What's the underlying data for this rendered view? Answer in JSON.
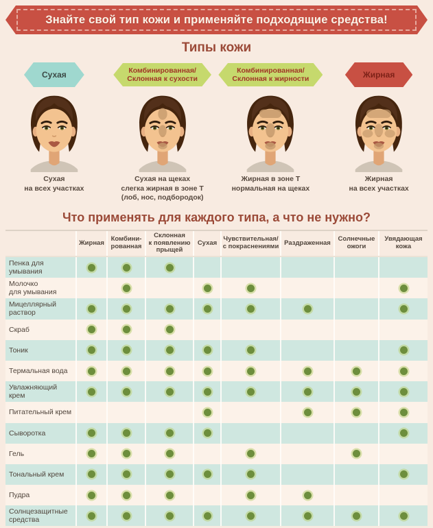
{
  "banner": {
    "text": "Знайте свой тип кожи и применяйте подходящие средства!"
  },
  "skin_types": {
    "title": "Типы кожи",
    "items": [
      {
        "badge": "Сухая",
        "color": "#9fd8cf",
        "text_color": "#3c4a46",
        "description": "Сухая\nна всех участках"
      },
      {
        "badge": "Комбинированная/\nСклонная к сухости",
        "color": "#c6d96d",
        "text_color": "#a03727",
        "description": "Сухая на щеках\nслегка жирная в зоне Т\n(лоб, нос, подбородок)"
      },
      {
        "badge": "Комбинированная/\nСклонная к жирности",
        "color": "#c6d96d",
        "text_color": "#a03727",
        "description": "Жирная в зоне Т\nнормальная на щеках"
      },
      {
        "badge": "Жирная",
        "color": "#c85043",
        "text_color": "#7e2218",
        "description": "Жирная\nна всех участках"
      }
    ]
  },
  "table": {
    "title": "Что применять для каждого типа, а что не нужно?",
    "columns": [
      "Жирная",
      "Комбини-\nрованная",
      "Склонная\nк появлению\nпрыщей",
      "Сухая",
      "Чувствительная/\nс покраснениями",
      "Раздраженная",
      "Солнечные\nожоги",
      "Увядающая\nкожа"
    ],
    "rows": [
      {
        "label": "Пенка для\nумывания",
        "marks": [
          1,
          1,
          1,
          0,
          0,
          0,
          0,
          0
        ]
      },
      {
        "label": "Молочко\nдля умывания",
        "marks": [
          0,
          1,
          0,
          1,
          1,
          0,
          0,
          1
        ]
      },
      {
        "label": "Мицеллярный\nраствор",
        "marks": [
          1,
          1,
          1,
          1,
          1,
          1,
          0,
          1
        ]
      },
      {
        "label": "Скраб",
        "marks": [
          1,
          1,
          1,
          0,
          0,
          0,
          0,
          0
        ]
      },
      {
        "label": "Тоник",
        "marks": [
          1,
          1,
          1,
          1,
          1,
          0,
          0,
          1
        ]
      },
      {
        "label": "Термальная вода",
        "marks": [
          1,
          1,
          1,
          1,
          1,
          1,
          1,
          1
        ]
      },
      {
        "label": "Увлажняющий\nкрем",
        "marks": [
          1,
          1,
          1,
          1,
          1,
          1,
          1,
          1
        ]
      },
      {
        "label": "Питательный крем",
        "marks": [
          0,
          0,
          0,
          1,
          0,
          1,
          1,
          1
        ]
      },
      {
        "label": "Сыворотка",
        "marks": [
          1,
          1,
          1,
          1,
          0,
          0,
          0,
          1
        ]
      },
      {
        "label": "Гель",
        "marks": [
          1,
          1,
          1,
          0,
          1,
          0,
          1,
          0
        ]
      },
      {
        "label": "Тональный крем",
        "marks": [
          1,
          1,
          1,
          1,
          1,
          0,
          0,
          1
        ]
      },
      {
        "label": "Пудра",
        "marks": [
          1,
          1,
          1,
          0,
          1,
          1,
          0,
          0
        ]
      },
      {
        "label": "Солнцезащитные\nсредства",
        "marks": [
          1,
          1,
          1,
          1,
          1,
          1,
          1,
          1
        ]
      }
    ]
  },
  "colors": {
    "banner_bg": "#c85043",
    "title_text": "#9b4a38",
    "dot": "#6d8e3d",
    "row_teal": "#cfe7e0",
    "row_cream": "#fcf2e9",
    "page_bg": "#f8ebe1"
  }
}
